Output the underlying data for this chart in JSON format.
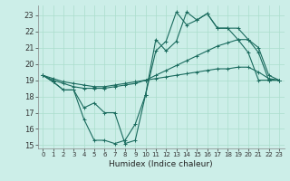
{
  "xlabel": "Humidex (Indice chaleur)",
  "background_color": "#cceee8",
  "line_color": "#1a6b5e",
  "grid_color": "#aaddcc",
  "xlim": [
    -0.5,
    23.5
  ],
  "ylim": [
    14.8,
    23.6
  ],
  "yticks": [
    15,
    16,
    17,
    18,
    19,
    20,
    21,
    22,
    23
  ],
  "xticks": [
    0,
    1,
    2,
    3,
    4,
    5,
    6,
    7,
    8,
    9,
    10,
    11,
    12,
    13,
    14,
    15,
    16,
    17,
    18,
    19,
    20,
    21,
    22,
    23
  ],
  "series_a_x": [
    0,
    1,
    2,
    3,
    4,
    5,
    6,
    7,
    8,
    9,
    10,
    11,
    12,
    13,
    14,
    15,
    16,
    17,
    18,
    19,
    20,
    21,
    22,
    23
  ],
  "series_a_y": [
    19.3,
    18.9,
    18.4,
    18.4,
    16.6,
    15.3,
    15.3,
    15.1,
    15.3,
    16.3,
    18.1,
    20.8,
    21.4,
    23.2,
    22.4,
    22.7,
    23.1,
    22.2,
    22.2,
    21.5,
    20.7,
    19.0,
    19.0,
    19.0
  ],
  "series_b_x": [
    0,
    1,
    2,
    3,
    4,
    5,
    6,
    7,
    8,
    9,
    10,
    11,
    12,
    13,
    14,
    15,
    16,
    17,
    18,
    19,
    20,
    21,
    22,
    23
  ],
  "series_b_y": [
    19.3,
    18.9,
    18.4,
    18.4,
    17.3,
    17.6,
    17.0,
    17.0,
    15.1,
    15.3,
    18.1,
    21.5,
    20.8,
    21.4,
    23.2,
    22.7,
    23.1,
    22.2,
    22.2,
    22.2,
    21.5,
    20.7,
    19.0,
    19.0
  ],
  "series_c_x": [
    0,
    1,
    2,
    3,
    4,
    5,
    6,
    7,
    8,
    9,
    10,
    11,
    12,
    13,
    14,
    15,
    16,
    17,
    18,
    19,
    20,
    21,
    22,
    23
  ],
  "series_c_y": [
    19.3,
    19.0,
    18.8,
    18.6,
    18.5,
    18.5,
    18.5,
    18.6,
    18.7,
    18.8,
    19.0,
    19.3,
    19.6,
    19.9,
    20.2,
    20.5,
    20.8,
    21.1,
    21.3,
    21.5,
    21.5,
    21.0,
    19.3,
    19.0
  ],
  "series_d_x": [
    0,
    1,
    2,
    3,
    4,
    5,
    6,
    7,
    8,
    9,
    10,
    11,
    12,
    13,
    14,
    15,
    16,
    17,
    18,
    19,
    20,
    21,
    22,
    23
  ],
  "series_d_y": [
    19.3,
    19.1,
    18.9,
    18.8,
    18.7,
    18.6,
    18.6,
    18.7,
    18.8,
    18.9,
    19.0,
    19.1,
    19.2,
    19.3,
    19.4,
    19.5,
    19.6,
    19.7,
    19.7,
    19.8,
    19.8,
    19.5,
    19.1,
    19.0
  ]
}
